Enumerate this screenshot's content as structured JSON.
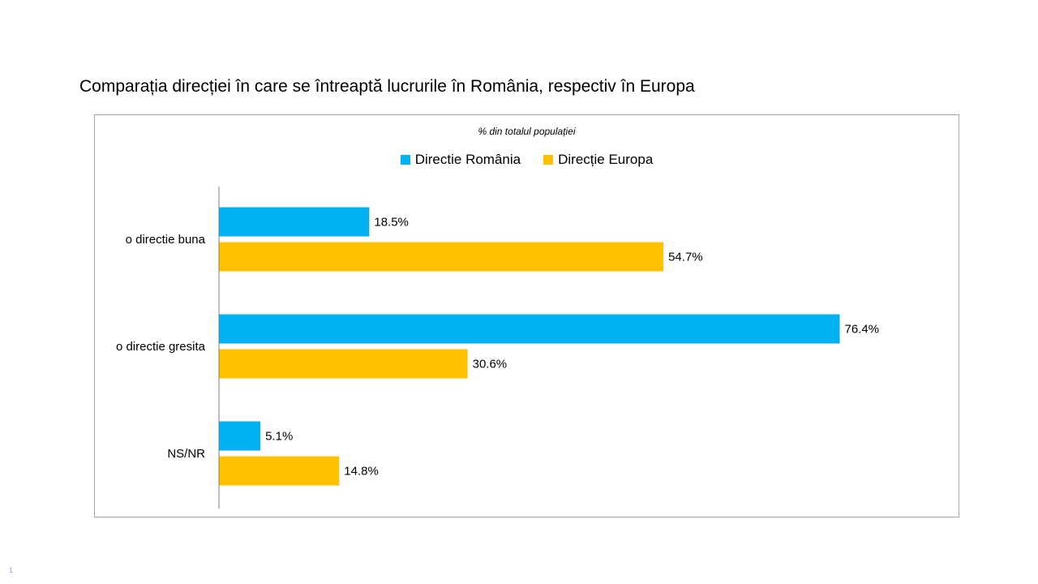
{
  "slide": {
    "title": "Comparația direcției în care se întreaptă lucrurile în România, respectiv în Europa",
    "page_number": "1"
  },
  "chart_data": {
    "type": "bar",
    "orientation": "horizontal",
    "subtitle": "% din totalul populației",
    "categories": [
      "o directie buna",
      "o directie gresita",
      "NS/NR"
    ],
    "series": [
      {
        "name": "Directie România",
        "color": "#00b0f0",
        "values": [
          18.5,
          76.4,
          5.1
        ],
        "labels": [
          "18.5%",
          "76.4%",
          "5.1%"
        ]
      },
      {
        "name": "Direcție Europa",
        "color": "#ffc000",
        "values": [
          54.7,
          30.6,
          14.8
        ],
        "labels": [
          "54.7%",
          "30.6%",
          "14.8%"
        ]
      }
    ],
    "xlim": [
      0,
      80
    ],
    "grid": false,
    "legend_position": "top"
  }
}
